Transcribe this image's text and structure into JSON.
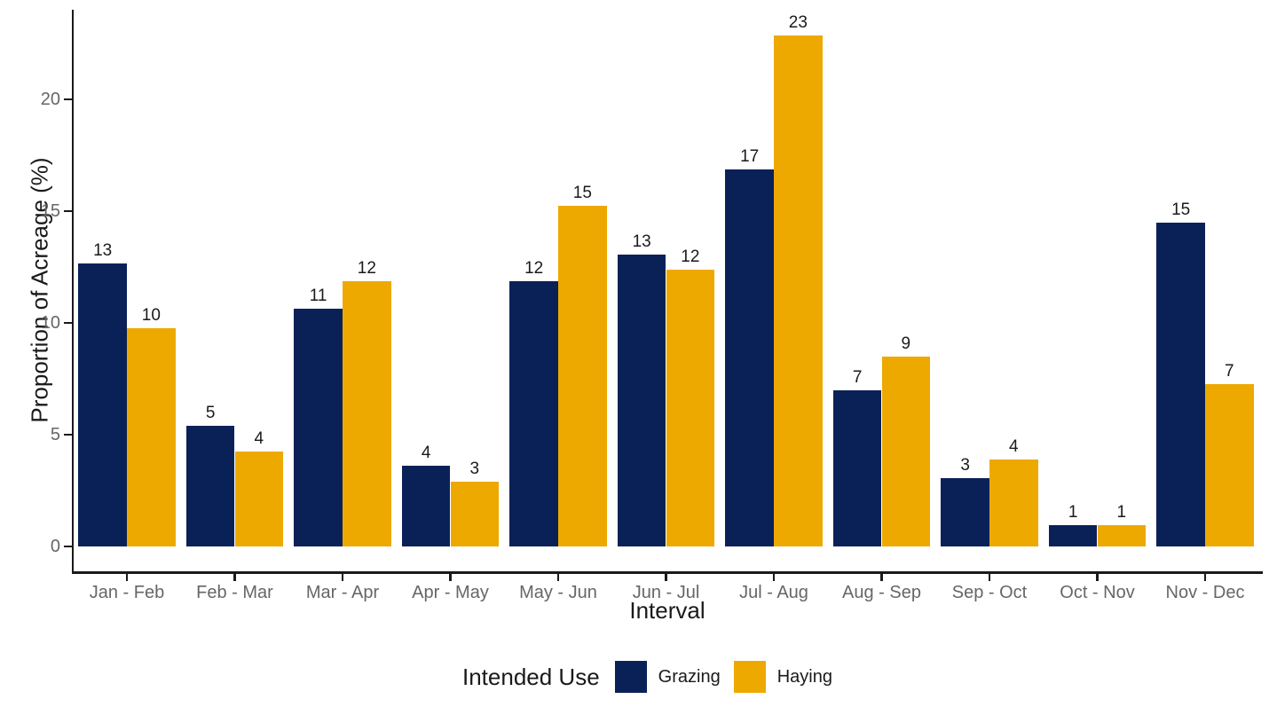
{
  "figure": {
    "background": "#ffffff"
  },
  "chart_data": {
    "type": "bar",
    "title": "",
    "xlabel": "Interval",
    "ylabel": "Proportion of Acreage (%)",
    "legend_title": "Intended Use",
    "legend_position": "bottom",
    "grid": false,
    "categories": [
      "Jan - Feb",
      "Feb - Mar",
      "Mar - Apr",
      "Apr - May",
      "May - Jun",
      "Jun - Jul",
      "Jul - Aug",
      "Aug - Sep",
      "Sep - Oct",
      "Oct - Nov",
      "Nov - Dec"
    ],
    "series": [
      {
        "name": "Grazing",
        "color": "#0A2158",
        "values": [
          12.65,
          5.4,
          10.65,
          3.6,
          11.85,
          13.05,
          16.85,
          7.0,
          3.05,
          0.95,
          14.5
        ],
        "labels": [
          "13",
          "5",
          "11",
          "4",
          "12",
          "13",
          "17",
          "7",
          "3",
          "1",
          "15"
        ]
      },
      {
        "name": "Haying",
        "color": "#EDA900",
        "values": [
          9.75,
          4.25,
          11.85,
          2.9,
          15.25,
          12.4,
          22.85,
          8.5,
          3.9,
          0.95,
          7.25
        ],
        "labels": [
          "10",
          "4",
          "12",
          "3",
          "15",
          "12",
          "23",
          "9",
          "4",
          "1",
          "7"
        ]
      }
    ],
    "yticks": [
      "0",
      "5",
      "10",
      "15",
      "20"
    ],
    "ylim": [
      0,
      24
    ],
    "axis_color": "#1a1a1a",
    "tick_label_color": "#666666",
    "bar_label_color": "#1a1a1a"
  }
}
